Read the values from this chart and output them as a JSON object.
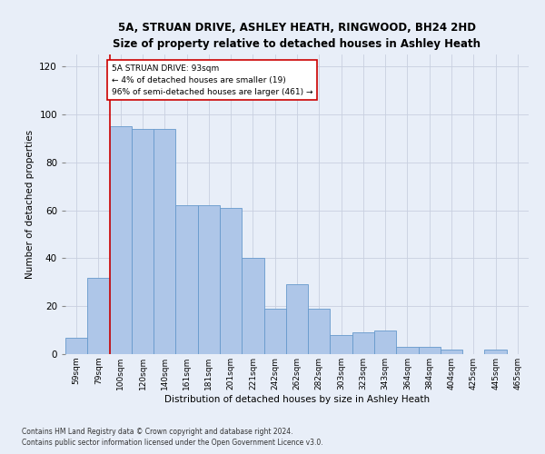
{
  "title": "5A, STRUAN DRIVE, ASHLEY HEATH, RINGWOOD, BH24 2HD",
  "subtitle": "Size of property relative to detached houses in Ashley Heath",
  "xlabel": "Distribution of detached houses by size in Ashley Heath",
  "ylabel": "Number of detached properties",
  "categories": [
    "59sqm",
    "79sqm",
    "100sqm",
    "120sqm",
    "140sqm",
    "161sqm",
    "181sqm",
    "201sqm",
    "221sqm",
    "242sqm",
    "262sqm",
    "282sqm",
    "303sqm",
    "323sqm",
    "343sqm",
    "364sqm",
    "384sqm",
    "404sqm",
    "425sqm",
    "445sqm",
    "465sqm"
  ],
  "values": [
    7,
    32,
    95,
    94,
    94,
    62,
    62,
    61,
    40,
    19,
    29,
    19,
    8,
    9,
    10,
    3,
    3,
    2,
    0,
    2,
    0
  ],
  "bar_color": "#aec6e8",
  "bar_edge_color": "#6699cc",
  "vline_x": 1.5,
  "vline_color": "#cc0000",
  "annotation_text": "5A STRUAN DRIVE: 93sqm\n← 4% of detached houses are smaller (19)\n96% of semi-detached houses are larger (461) →",
  "annotation_box_color": "#ffffff",
  "annotation_box_edgecolor": "#cc0000",
  "ylim": [
    0,
    125
  ],
  "yticks": [
    0,
    20,
    40,
    60,
    80,
    100,
    120
  ],
  "footer1": "Contains HM Land Registry data © Crown copyright and database right 2024.",
  "footer2": "Contains public sector information licensed under the Open Government Licence v3.0.",
  "background_color": "#e8eef8",
  "grid_color": "#c8d0e0"
}
